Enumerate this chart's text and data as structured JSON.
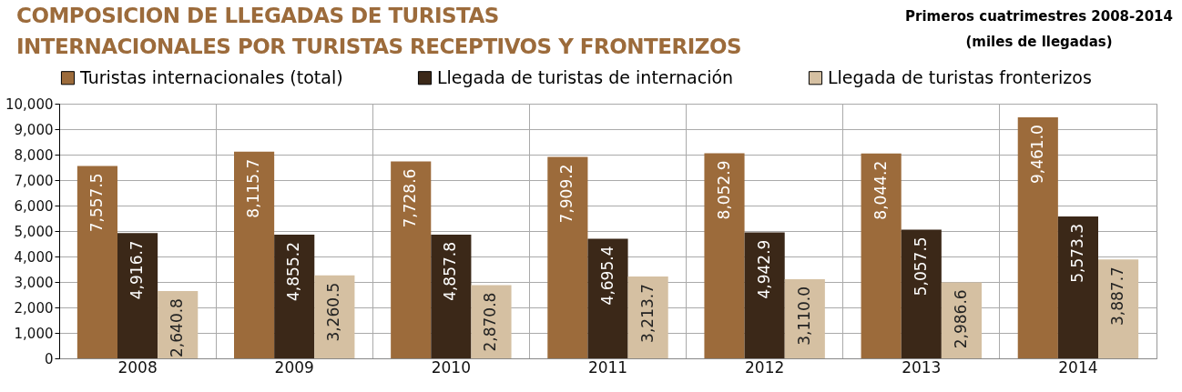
{
  "chart_data": {
    "type": "bar",
    "title": "COMPOSICION DE LLEGADAS DE TURISTAS\nINTERNACIONALES POR TURISTAS RECEPTIVOS Y FRONTERIZOS",
    "subtitle": "Primeros cuatrimestres 2008-2014\n(miles de llegadas)",
    "categories": [
      "2008",
      "2009",
      "2010",
      "2011",
      "2012",
      "2013",
      "2014"
    ],
    "series": [
      {
        "name": "Turistas internacionales (total)",
        "color": "#9c6b3b",
        "values": [
          7557.5,
          8115.7,
          7728.6,
          7909.2,
          8052.9,
          8044.2,
          9461.0
        ],
        "value_labels": [
          "7,557.5",
          "8,115.7",
          "7,728.6",
          "7,909.2",
          "8,052.9",
          "8,044.2",
          "9,461.0"
        ]
      },
      {
        "name": "Llegada de turistas de internación",
        "color": "#3b2818",
        "values": [
          4916.7,
          4855.2,
          4857.8,
          4695.4,
          4942.9,
          5057.5,
          5573.3
        ],
        "value_labels": [
          "4,916.7",
          "4,855.2",
          "4,857.8",
          "4,695.4",
          "4,942.9",
          "5,057.5",
          "5,573.3"
        ]
      },
      {
        "name": "Llegada de turistas fronterizos",
        "color": "#d5c0a2",
        "values": [
          2640.8,
          3260.5,
          2870.8,
          3213.7,
          3110.0,
          2986.6,
          3887.7
        ],
        "value_labels": [
          "2,640.8",
          "3,260.5",
          "2,870.8",
          "3,213.7",
          "3,110.0",
          "2,986.6",
          "3,887.7"
        ]
      }
    ],
    "ylim": [
      0,
      10000
    ],
    "yticks": [
      0,
      {
        "value": 1000,
        "label": "1,000"
      },
      {
        "value": 2000,
        "label": "2,000"
      },
      {
        "value": 3000,
        "label": "3,000"
      },
      {
        "value": 4000,
        "label": "4,000"
      },
      {
        "value": 5000,
        "label": "5,000"
      },
      {
        "value": 6000,
        "label": "6,000"
      },
      {
        "value": 7000,
        "label": "7,000"
      },
      {
        "value": 8000,
        "label": "8,000"
      },
      {
        "value": 9000,
        "label": "9,000"
      },
      {
        "value": 10000,
        "label": "10,000"
      }
    ],
    "grid": true,
    "legend": "top"
  }
}
